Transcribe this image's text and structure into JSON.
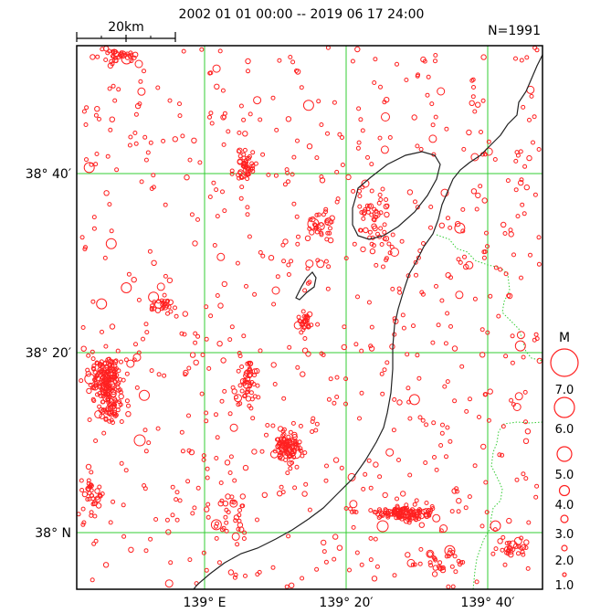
{
  "header": {
    "period": "2002  01  01  00:00  --  2019  06  17  24:00",
    "count": "N=1991",
    "scale_bar": "20km"
  },
  "axes": {
    "lat_labels": [
      "38° 40′",
      "38° 20′",
      "38° N"
    ],
    "lon_labels": [
      "139° E",
      "139° 20′",
      "139° 40′"
    ]
  },
  "legend": {
    "title": "M",
    "magnitudes": [
      "7.0",
      "6.0",
      "5.0",
      "4.0",
      "3.0",
      "2.0",
      "1.0"
    ]
  },
  "colors": {
    "event_marker": "#ff2020",
    "graticule": "#33cc33",
    "coastline": "#222222",
    "prefecture_border": "#33cc33"
  },
  "map": {
    "region_lat": [
      37.85,
      38.78
    ],
    "region_lon": [
      138.8,
      139.78
    ],
    "graticule_lat": [
      38.0,
      38.3333,
      38.6667
    ],
    "graticule_lon": [
      139.0,
      139.3333,
      139.6667
    ]
  }
}
